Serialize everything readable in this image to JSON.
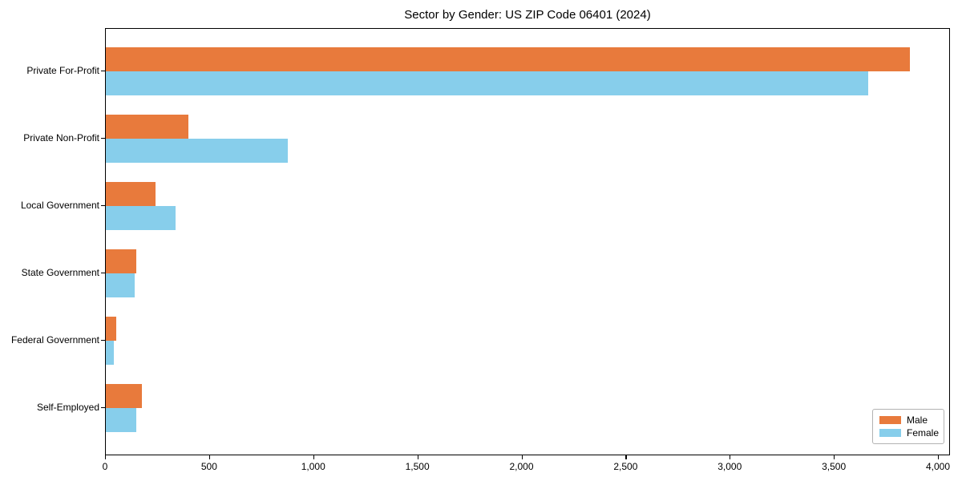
{
  "chart": {
    "title": "Sector by Gender: US ZIP Code 06401 (2024)"
  },
  "chart_data": {
    "type": "bar",
    "orientation": "horizontal",
    "title": "Sector by Gender: US ZIP Code 06401 (2024)",
    "xlabel": "",
    "ylabel": "",
    "categories": [
      "Private For-Profit",
      "Private Non-Profit",
      "Local Government",
      "State Government",
      "Federal Government",
      "Self-Employed"
    ],
    "series": [
      {
        "name": "Male",
        "color": "#E87A3C",
        "values": [
          3860,
          395,
          240,
          145,
          50,
          175
        ]
      },
      {
        "name": "Female",
        "color": "#87CEEB",
        "values": [
          3660,
          875,
          335,
          140,
          40,
          145
        ]
      }
    ],
    "xlim": [
      0,
      4000
    ],
    "xticks": [
      0,
      500,
      1000,
      1500,
      2000,
      2500,
      3000,
      3500,
      4000
    ],
    "xtick_labels": [
      "0",
      "500",
      "1,000",
      "1,500",
      "2,000",
      "2,500",
      "3,000",
      "3,500",
      "4,000"
    ],
    "grid": false,
    "legend": {
      "position": "lower right",
      "entries": [
        "Male",
        "Female"
      ]
    }
  }
}
